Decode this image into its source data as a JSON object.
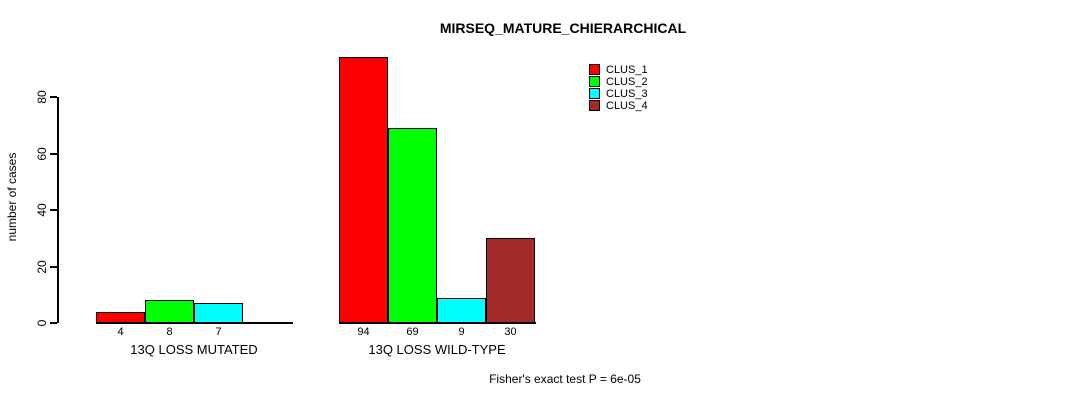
{
  "title": "MIRSEQ_MATURE_CHIERARCHICAL",
  "annotation": "Fisher's exact test P = 6e-05",
  "chart_data": {
    "type": "bar",
    "title": "MIRSEQ_MATURE_CHIERARCHICAL",
    "xlabel": "",
    "ylabel": "number of cases",
    "yticks": [
      0,
      20,
      40,
      60,
      80
    ],
    "ylim": [
      0,
      94
    ],
    "grid": false,
    "bar_value_labels_shown": true,
    "legend_position": "top-right",
    "categories": [
      "13Q LOSS MUTATED",
      "13Q LOSS WILD-TYPE"
    ],
    "series": [
      {
        "name": "CLUS_1",
        "color": "#FF0000",
        "values": [
          4,
          94
        ]
      },
      {
        "name": "CLUS_2",
        "color": "#00FF00",
        "values": [
          8,
          69
        ]
      },
      {
        "name": "CLUS_3",
        "color": "#00FFFF",
        "values": [
          7,
          9
        ]
      },
      {
        "name": "CLUS_4",
        "color": "#A52A2A",
        "values": [
          null,
          30
        ]
      }
    ],
    "annotation": "Fisher's exact test P = 6e-05"
  }
}
